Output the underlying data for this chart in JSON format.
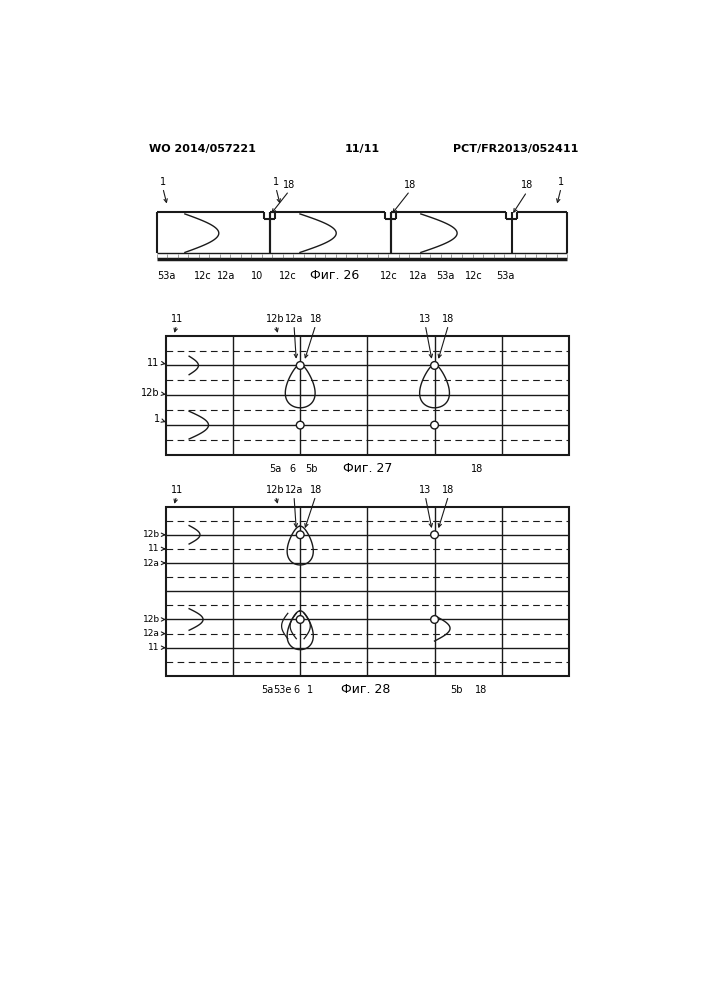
{
  "bg_color": "#ffffff",
  "header_left": "WO 2014/057221",
  "header_center": "11/11",
  "header_right": "PCT/FR2013/052411",
  "fig26_label": "Фиг. 26",
  "fig27_label": "Фиг. 27",
  "fig28_label": "Фиг. 28"
}
